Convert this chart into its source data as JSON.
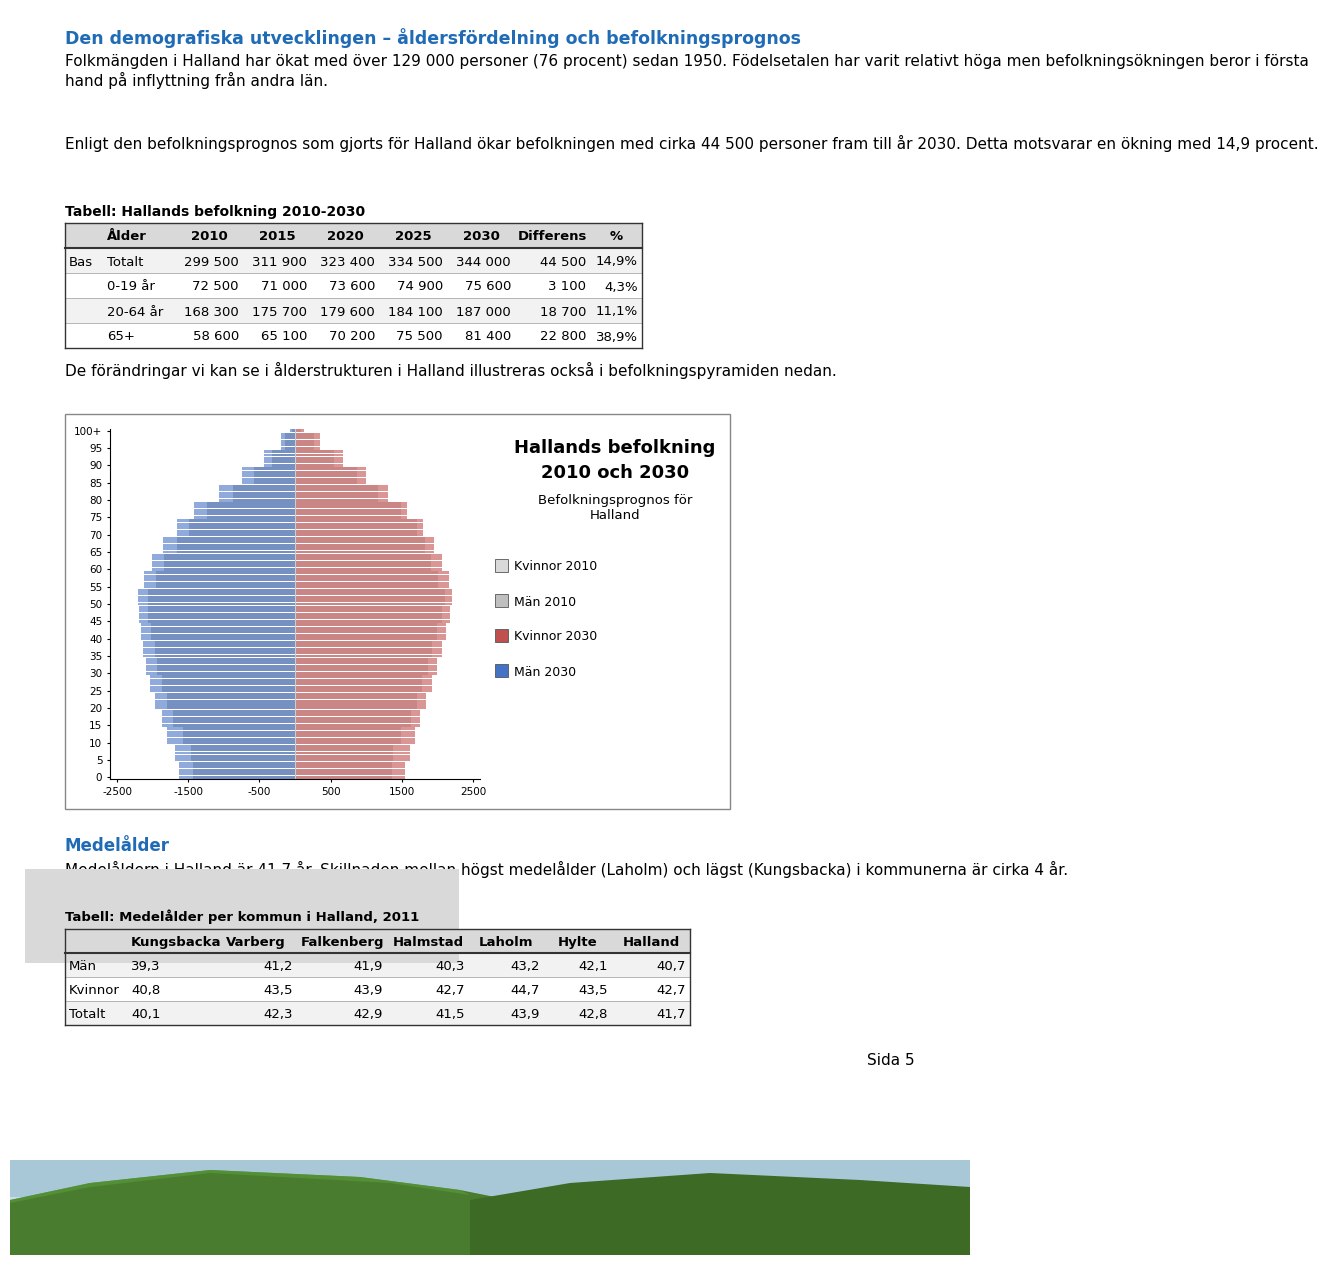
{
  "title": "Den demografiska utvecklingen – åldersfördelning och befolkningsprognos",
  "para1": "Folkmängden i Halland har ökat med över 129 000 personer (76 procent) sedan 1950. Födelsetalen har varit relativt höga men befolkningsökningen beror i första hand på inflyttning från andra län.",
  "para2": "Enligt den befolkningsprognos som gjorts för Halland ökar befolkningen med cirka 44 500 personer fram till år 2030. Detta motsvarar en ökning med 14,9 procent.",
  "table1_title": "Tabell: Hallands befolkning 2010-2030",
  "table1_headers": [
    "",
    "Ålder",
    "2010",
    "2015",
    "2020",
    "2025",
    "2030",
    "Differens",
    "%"
  ],
  "table1_rows": [
    [
      "Bas",
      "Totalt",
      "299 500",
      "311 900",
      "323 400",
      "334 500",
      "344 000",
      "44 500",
      "14,9%"
    ],
    [
      "",
      "0-19 år",
      "72 500",
      "71 000",
      "73 600",
      "74 900",
      "75 600",
      "3 100",
      "4,3%"
    ],
    [
      "",
      "20-64 år",
      "168 300",
      "175 700",
      "179 600",
      "184 100",
      "187 000",
      "18 700",
      "11,1%"
    ],
    [
      "",
      "65+",
      "58 600",
      "65 100",
      "70 200",
      "75 500",
      "81 400",
      "22 800",
      "38,9%"
    ]
  ],
  "para3": "De förändringar vi kan se i ålderstrukturen i Halland illustreras också i befolkningspyramiden nedan.",
  "pyramid_title1": "Hallands befolkning",
  "pyramid_title2": "2010 och 2030",
  "pyramid_subtitle": "Befolkningsprognos för\nHalland",
  "pyramid_legend": [
    "Kvinnor 2010",
    "Män 2010",
    "Kvinnor 2030",
    "Män 2030"
  ],
  "color_women_2010": "#d9d9d9",
  "color_men_2010": "#bfbfbf",
  "color_women_2030": "#c0504d",
  "color_men_2030": "#4472c4",
  "medelalder_title": "Medelålder",
  "medelalder_para": "Medelåldern i Halland är 41,7 år. Skillnaden mellan högst medelålder (Laholm) och lägst (Kungsbacka) i kommunerna är cirka 4 år.",
  "table2_title": "Tabell: Medelålder per kommun i Halland, 2011",
  "table2_headers": [
    "",
    "Kungsbacka",
    "Varberg",
    "Falkenberg",
    "Halmstad",
    "Laholm",
    "Hylte",
    "Halland"
  ],
  "table2_rows": [
    [
      "Män",
      "39,3",
      "41,2",
      "41,9",
      "40,3",
      "43,2",
      "42,1",
      "40,7"
    ],
    [
      "Kvinnor",
      "40,8",
      "43,5",
      "43,9",
      "42,7",
      "44,7",
      "43,5",
      "42,7"
    ],
    [
      "Totalt",
      "40,1",
      "42,3",
      "42,9",
      "41,5",
      "43,9",
      "42,8",
      "41,7"
    ]
  ],
  "page_num": "Sida 5"
}
